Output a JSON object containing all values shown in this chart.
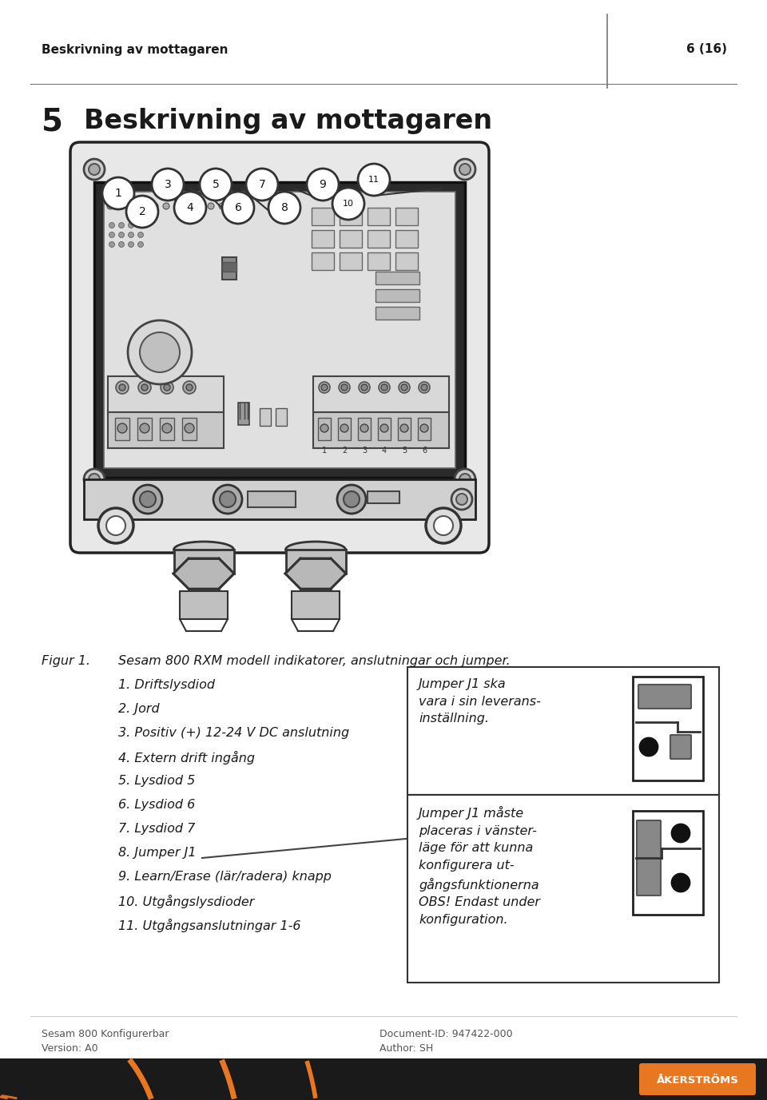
{
  "header_left": "Beskrivning av mottagaren",
  "header_right": "6 (16)",
  "title_number": "5",
  "title_text": "Beskrivning av mottagaren",
  "figure_label": "Figur 1.",
  "figure_caption": "Sesam 800 RXM modell indikatorer, anslutningar och jumper.",
  "list_items": [
    "1. Driftslysdiod",
    "2. Jord",
    "3. Positiv (+) 12-24 V DC anslutning",
    "4. Extern drift ingång",
    "5. Lysdiod 5",
    "6. Lysdiod 6",
    "7. Lysdiod 7",
    "8. Jumper J1",
    "9. Learn/Erase (lär/radera) knapp",
    "10. Utgångslysdioder",
    "11. Utgångsanslutningar 1-6"
  ],
  "jumper_box1_text": "Jumper J1 ska\nvara i sin leverans-\ninställning.",
  "jumper_box2_text": "Jumper J1 måste\nplaceras i vänster-\nläge för att kunna\nkonfigurera ut-\ngångsfunktionerna\nOBS! Endast under\nkonfiguration.",
  "footer_left1": "Sesam 800 Konfigurerbar",
  "footer_left2": "Version: A0",
  "footer_right1": "Document-ID: 947422-000",
  "footer_right2": "Author: SH",
  "bg_color": "#ffffff",
  "text_color": "#1a1a1a",
  "gray_text": "#555555",
  "header_line_color": "#777777",
  "footer_bar_color": "#1a1a1a",
  "orange_color": "#e87722",
  "box_border_color": "#333333",
  "top_circles": [
    [
      "1",
      148,
      242
    ],
    [
      "3",
      210,
      231
    ],
    [
      "5",
      270,
      231
    ],
    [
      "7",
      328,
      231
    ],
    [
      "9",
      404,
      231
    ],
    [
      "11",
      468,
      225
    ]
  ],
  "bot_circles": [
    [
      "2",
      178,
      265
    ],
    [
      "4",
      238,
      260
    ],
    [
      "6",
      298,
      260
    ],
    [
      "8",
      356,
      260
    ],
    [
      "10",
      436,
      255
    ]
  ]
}
